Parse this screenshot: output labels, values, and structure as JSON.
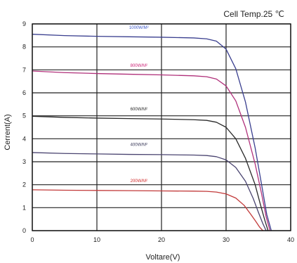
{
  "chart_data": {
    "type": "line",
    "annotation": "Cell Temp.25 ℃",
    "xlabel": "Voltare(V)",
    "ylabel": "Cerrent(A)",
    "xlim": [
      0,
      40
    ],
    "ylim": [
      0,
      9
    ],
    "xticks": [
      "0",
      "10",
      "20",
      "30",
      "40"
    ],
    "yticks": [
      "0",
      "1",
      "2",
      "3",
      "4",
      "5",
      "6",
      "7",
      "8",
      "9"
    ],
    "grid": true,
    "series": [
      {
        "name": "1000W/M²",
        "color": "#3a3f8f",
        "label_color": "#3a56c8",
        "x": [
          0,
          5,
          10,
          15,
          20,
          25,
          27,
          28.5,
          30,
          31.5,
          33,
          34.5,
          35.5,
          36.3,
          37
        ],
        "y": [
          8.55,
          8.49,
          8.46,
          8.44,
          8.42,
          8.39,
          8.35,
          8.25,
          7.9,
          7.05,
          5.6,
          3.6,
          2.0,
          0.7,
          0
        ]
      },
      {
        "name": "800W/M²",
        "color": "#b0307a",
        "label_color": "#cc2277",
        "x": [
          0,
          5,
          10,
          15,
          20,
          25,
          27,
          28.5,
          30,
          31.5,
          33,
          34.5,
          35.5,
          36.2,
          36.8
        ],
        "y": [
          6.95,
          6.88,
          6.84,
          6.81,
          6.78,
          6.74,
          6.7,
          6.6,
          6.3,
          5.65,
          4.5,
          2.9,
          1.6,
          0.6,
          0
        ]
      },
      {
        "name": "600W/M²",
        "color": "#2a2a2a",
        "label_color": "#2a2a2a",
        "x": [
          0,
          5,
          10,
          15,
          20,
          25,
          27,
          28.5,
          30,
          31.5,
          33,
          34.5,
          35.3,
          36,
          36.5
        ],
        "y": [
          4.98,
          4.93,
          4.9,
          4.88,
          4.86,
          4.83,
          4.8,
          4.72,
          4.5,
          4.0,
          3.15,
          2.0,
          1.15,
          0.45,
          0
        ]
      },
      {
        "name": "400W/M²",
        "color": "#4a4470",
        "label_color": "#3a3a5a",
        "x": [
          0,
          5,
          10,
          15,
          20,
          25,
          27,
          28.5,
          30,
          31.5,
          33,
          34.2,
          35,
          35.7,
          36.2
        ],
        "y": [
          3.4,
          3.36,
          3.34,
          3.32,
          3.31,
          3.29,
          3.27,
          3.22,
          3.08,
          2.75,
          2.15,
          1.4,
          0.8,
          0.3,
          0
        ]
      },
      {
        "name": "200W/M²",
        "color": "#c23a3a",
        "label_color": "#d02a2a",
        "x": [
          0,
          5,
          10,
          15,
          20,
          25,
          27,
          28.5,
          30,
          31.5,
          32.8,
          33.8,
          34.6,
          35.2,
          35.7
        ],
        "y": [
          1.78,
          1.76,
          1.75,
          1.74,
          1.73,
          1.72,
          1.71,
          1.68,
          1.6,
          1.42,
          1.1,
          0.72,
          0.4,
          0.15,
          0
        ]
      }
    ]
  }
}
